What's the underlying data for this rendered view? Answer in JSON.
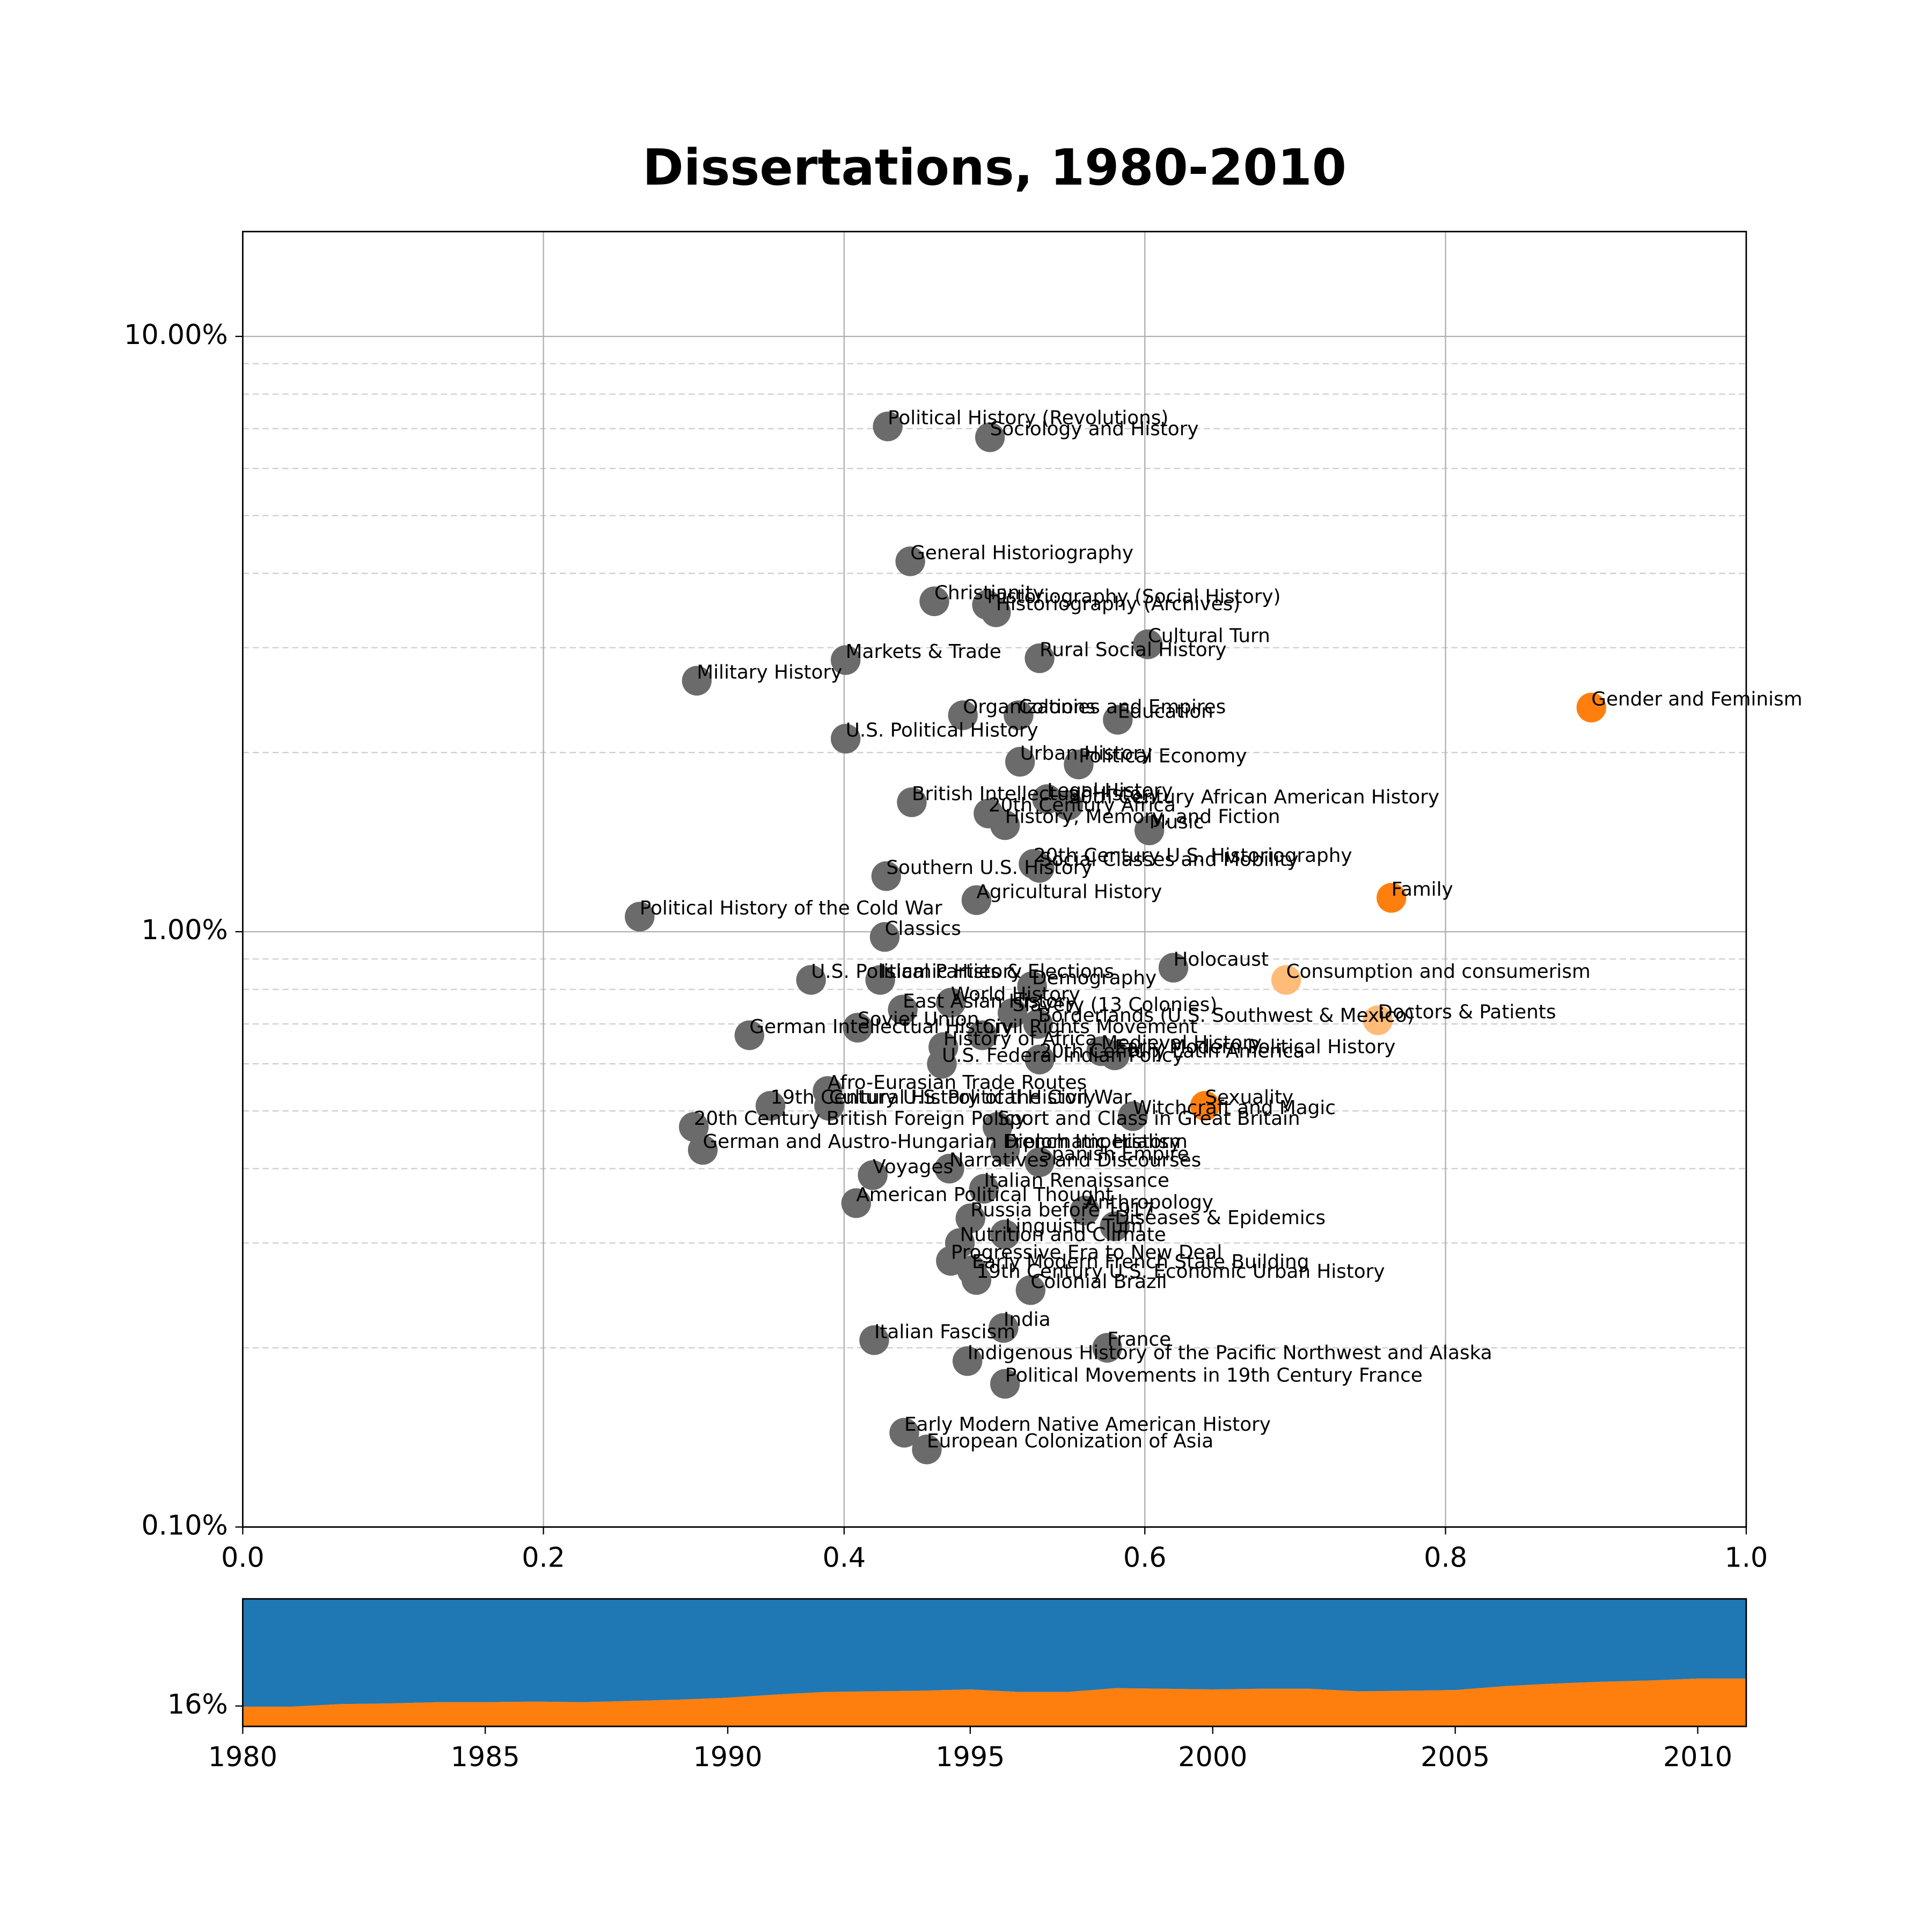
{
  "chart_data": [
    {
      "type": "scatter",
      "title": "Dissertations, 1980-2010",
      "xlim": [
        0,
        1
      ],
      "ylim": [
        0.1,
        15
      ],
      "ylog": true,
      "grid": true,
      "xticks": [
        {
          "value": 0,
          "label": "0.0"
        },
        {
          "value": 0.2,
          "label": "0.2"
        },
        {
          "value": 0.4,
          "label": "0.4"
        },
        {
          "value": 0.6,
          "label": "0.6"
        },
        {
          "value": 0.8,
          "label": "0.8"
        },
        {
          "value": 1,
          "label": "1.0"
        }
      ],
      "yticks": [
        {
          "value": 0.1,
          "label": "0.10%"
        },
        {
          "value": 1,
          "label": "1.00%"
        },
        {
          "value": 10,
          "label": "10.00%"
        }
      ],
      "yminorticks": [
        0.2,
        0.3,
        0.4,
        0.5,
        0.6,
        0.7,
        0.8,
        0.9,
        2,
        3,
        4,
        5,
        6,
        7,
        8,
        9
      ],
      "labels": [
        "Political History (Revolutions)",
        "Sociology and History",
        "General Historiography",
        "Christianity",
        "Historiography (Social History)",
        "Historiography (Archives)",
        "Cultural Turn",
        "Markets & Trade",
        "Rural Social History",
        "Military History",
        "Gender and Feminism",
        "Organizations",
        "Colonies and Empires",
        "Education",
        "U.S. Political History",
        "Urban History",
        "Political Economy",
        "British Intellectual History",
        "Legal History",
        "20th Century African American History",
        "20th Century Africa",
        "History, Memory, and Fiction",
        "Music",
        "20th Century U.S. Historiography",
        "Social Classes and Mobility",
        "Southern U.S. History",
        "Family",
        "Agricultural History",
        "Political History of the Cold War",
        "Classics",
        "Holocaust",
        "Consumption and consumerism",
        "U.S. Political Parties & Elections",
        "Islamic History",
        "Demography",
        "World History",
        "East Asian History",
        "Slavery (13 Colonies)",
        "Doctors & Patients",
        "Borderlands (U.S. Southwest & Mexico)",
        "Soviet Union",
        "German Intellectual History",
        "Civil Rights Movement",
        "History of Africa",
        "Medieval History",
        "Early Modern Political History",
        "20th Century Latin America",
        "U.S. Federal Indian Policy",
        "Afro-Eurasian Trade Routes",
        "19th Century U.S. Political History",
        "Sexuality",
        "Cultural History of the Civil War",
        "Witchcraft and Magic",
        "20th Century British Foreign Policy",
        "Sport and Class in Great Britain",
        "German and Austro-Hungarian Diplomatic History",
        "French Imperialism",
        "Voyages",
        "Narratives and Discourses",
        "Spanish Empire",
        "American Political Thought",
        "Italian Renaissance",
        "Russia before 1917",
        "Anthropology",
        "Diseases & Epidemics",
        "Linguistic Turn",
        "Nutrition and Climate",
        "Progressive Era to New Deal",
        "Early Modern French State Building",
        "19th Century U.S. Economic Urban History",
        "Colonial Brazil",
        "India",
        "Italian Fascism",
        "France",
        "Indigenous History of the Pacific Northwest and Alaska",
        "Political Movements in 19th Century France",
        "Early Modern Native American History",
        "European Colonization of Asia"
      ],
      "x": [
        0.429,
        0.497,
        0.444,
        0.46,
        0.495,
        0.501,
        0.602,
        0.401,
        0.53,
        0.302,
        0.897,
        0.479,
        0.516,
        0.582,
        0.401,
        0.517,
        0.556,
        0.445,
        0.535,
        0.549,
        0.496,
        0.507,
        0.603,
        0.526,
        0.53,
        0.428,
        0.764,
        0.488,
        0.264,
        0.427,
        0.619,
        0.694,
        0.378,
        0.424,
        0.525,
        0.471,
        0.439,
        0.512,
        0.755,
        0.529,
        0.409,
        0.337,
        0.492,
        0.466,
        0.571,
        0.58,
        0.53,
        0.465,
        0.389,
        0.351,
        0.64,
        0.39,
        0.592,
        0.3,
        0.502,
        0.306,
        0.507,
        0.419,
        0.47,
        0.53,
        0.408,
        0.493,
        0.484,
        0.56,
        0.58,
        0.507,
        0.477,
        0.471,
        0.485,
        0.488,
        0.524,
        0.506,
        0.42,
        0.575,
        0.482,
        0.507,
        0.44,
        0.455
      ],
      "y": [
        7.06,
        6.77,
        4.19,
        3.59,
        3.54,
        3.44,
        3.04,
        2.86,
        2.88,
        2.64,
        2.38,
        2.31,
        2.31,
        2.27,
        2.11,
        1.93,
        1.91,
        1.65,
        1.67,
        1.63,
        1.58,
        1.51,
        1.48,
        1.3,
        1.28,
        1.24,
        1.14,
        1.13,
        1.06,
        0.98,
        0.87,
        0.83,
        0.83,
        0.83,
        0.81,
        0.76,
        0.74,
        0.73,
        0.71,
        0.7,
        0.69,
        0.67,
        0.67,
        0.64,
        0.63,
        0.62,
        0.61,
        0.6,
        0.54,
        0.51,
        0.51,
        0.51,
        0.49,
        0.47,
        0.47,
        0.43,
        0.43,
        0.39,
        0.4,
        0.41,
        0.35,
        0.37,
        0.33,
        0.34,
        0.32,
        0.31,
        0.3,
        0.28,
        0.27,
        0.26,
        0.25,
        0.216,
        0.206,
        0.2,
        0.19,
        0.174,
        0.144,
        0.135
      ],
      "colors": [
        "#6b6b6b",
        "#6b6b6b",
        "#6b6b6b",
        "#6b6b6b",
        "#6b6b6b",
        "#6b6b6b",
        "#6b6b6b",
        "#6b6b6b",
        "#6b6b6b",
        "#6b6b6b",
        "#ff7f0e",
        "#6b6b6b",
        "#6b6b6b",
        "#6b6b6b",
        "#6b6b6b",
        "#6b6b6b",
        "#6b6b6b",
        "#6b6b6b",
        "#6b6b6b",
        "#6b6b6b",
        "#6b6b6b",
        "#6b6b6b",
        "#6b6b6b",
        "#6b6b6b",
        "#6b6b6b",
        "#6b6b6b",
        "#ff7f0e",
        "#6b6b6b",
        "#6b6b6b",
        "#6b6b6b",
        "#6b6b6b",
        "#ffbb78",
        "#6b6b6b",
        "#6b6b6b",
        "#6b6b6b",
        "#6b6b6b",
        "#6b6b6b",
        "#6b6b6b",
        "#ffbb78",
        "#6b6b6b",
        "#6b6b6b",
        "#6b6b6b",
        "#6b6b6b",
        "#6b6b6b",
        "#6b6b6b",
        "#6b6b6b",
        "#6b6b6b",
        "#6b6b6b",
        "#6b6b6b",
        "#6b6b6b",
        "#ff7f0e",
        "#6b6b6b",
        "#6b6b6b",
        "#6b6b6b",
        "#6b6b6b",
        "#6b6b6b",
        "#6b6b6b",
        "#6b6b6b",
        "#6b6b6b",
        "#6b6b6b",
        "#6b6b6b",
        "#6b6b6b",
        "#6b6b6b",
        "#6b6b6b",
        "#6b6b6b",
        "#6b6b6b",
        "#6b6b6b",
        "#6b6b6b",
        "#6b6b6b",
        "#6b6b6b",
        "#6b6b6b",
        "#6b6b6b",
        "#6b6b6b",
        "#6b6b6b",
        "#6b6b6b",
        "#6b6b6b",
        "#6b6b6b",
        "#6b6b6b"
      ]
    },
    {
      "type": "area",
      "stacked": true,
      "x": [
        1980,
        1981,
        1982,
        1983,
        1984,
        1985,
        1986,
        1987,
        1988,
        1989,
        1990,
        1991,
        1992,
        1993,
        1994,
        1995,
        1996,
        1997,
        1998,
        1999,
        2000,
        2001,
        2002,
        2003,
        2004,
        2005,
        2006,
        2007,
        2008,
        2009,
        2010,
        2011
      ],
      "xlim": [
        1980,
        2011
      ],
      "xticks": [
        1980,
        1985,
        1990,
        1995,
        2000,
        2005,
        2010
      ],
      "ylim": [
        0,
        100
      ],
      "yticks": [
        {
          "value": 16,
          "label": "16%"
        }
      ],
      "series": [
        {
          "color": "#ff7f0e",
          "values": [
            15.5,
            15.5,
            17.5,
            18,
            19,
            19,
            19.5,
            19,
            20,
            21,
            22.5,
            25,
            27,
            27.5,
            28,
            29,
            27,
            27,
            30,
            29.5,
            29,
            29.5,
            29.5,
            27.5,
            28,
            28.5,
            31.5,
            33.5,
            35,
            36,
            37.5,
            37.5
          ]
        },
        {
          "color": "#1f77b4",
          "values": [
            84.5,
            84.5,
            82.5,
            82,
            81,
            81,
            80.5,
            81,
            80,
            79,
            77.5,
            75,
            73,
            72.5,
            72,
            71,
            73,
            73,
            70,
            70.5,
            71,
            70.5,
            70.5,
            72.5,
            72,
            71.5,
            68.5,
            66.5,
            65,
            64,
            62.5,
            62.5
          ]
        }
      ]
    }
  ]
}
